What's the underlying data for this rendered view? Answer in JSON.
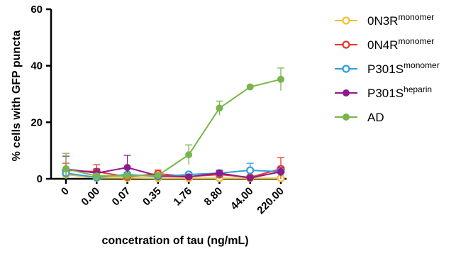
{
  "chart_data": {
    "type": "line",
    "xlabel": "concetration of tau (ng/mL)",
    "ylabel": "% cells with GFP puncta",
    "ylim": [
      0,
      60
    ],
    "yticks": [
      0,
      20,
      40,
      60
    ],
    "categories": [
      "0",
      "0.00",
      "0.07",
      "0.35",
      "1.76",
      "8.80",
      "44.00",
      "220.00"
    ],
    "legend_position": "right",
    "series": [
      {
        "name": "0N3R",
        "superscript": "monomer",
        "color": "#F2C12E",
        "marker": "open-circle",
        "values": [
          1.5,
          0.3,
          0.3,
          0.2,
          0.2,
          0.2,
          0.2,
          0.2
        ],
        "errors": [
          0.8,
          0.3,
          0.3,
          0.2,
          0.2,
          0.2,
          0.2,
          0.2
        ]
      },
      {
        "name": "0N4R",
        "superscript": "monomer",
        "color": "#E8362F",
        "marker": "open-circle",
        "values": [
          3.0,
          2.5,
          0.7,
          1.8,
          0.8,
          1.5,
          0.5,
          3.5
        ],
        "errors": [
          2.5,
          2.5,
          0.5,
          1.3,
          0.6,
          1.0,
          0.4,
          4.0
        ]
      },
      {
        "name": "P301S",
        "superscript": "monomer",
        "color": "#2E9FDC",
        "marker": "open-circle",
        "values": [
          2.0,
          0.5,
          1.5,
          0.8,
          1.5,
          2.0,
          3.0,
          2.5
        ],
        "errors": [
          1.0,
          0.4,
          0.8,
          0.5,
          0.8,
          1.0,
          2.5,
          1.5
        ]
      },
      {
        "name": "P301S",
        "superscript": "heparin",
        "color": "#8E1A8C",
        "marker": "filled-circle",
        "values": [
          3.5,
          2.0,
          4.0,
          1.0,
          0.7,
          2.0,
          0.3,
          2.5
        ],
        "errors": [
          4.5,
          1.5,
          4.3,
          1.0,
          0.5,
          1.0,
          0.3,
          1.5
        ]
      },
      {
        "name": "AD",
        "superscript": "",
        "color": "#78B54B",
        "marker": "filled-circle",
        "values": [
          3.5,
          1.0,
          1.0,
          1.2,
          8.5,
          25.0,
          32.5,
          35.2
        ],
        "errors": [
          5.5,
          0.8,
          0.8,
          0.8,
          3.5,
          2.5,
          0.5,
          4.0
        ]
      }
    ]
  }
}
